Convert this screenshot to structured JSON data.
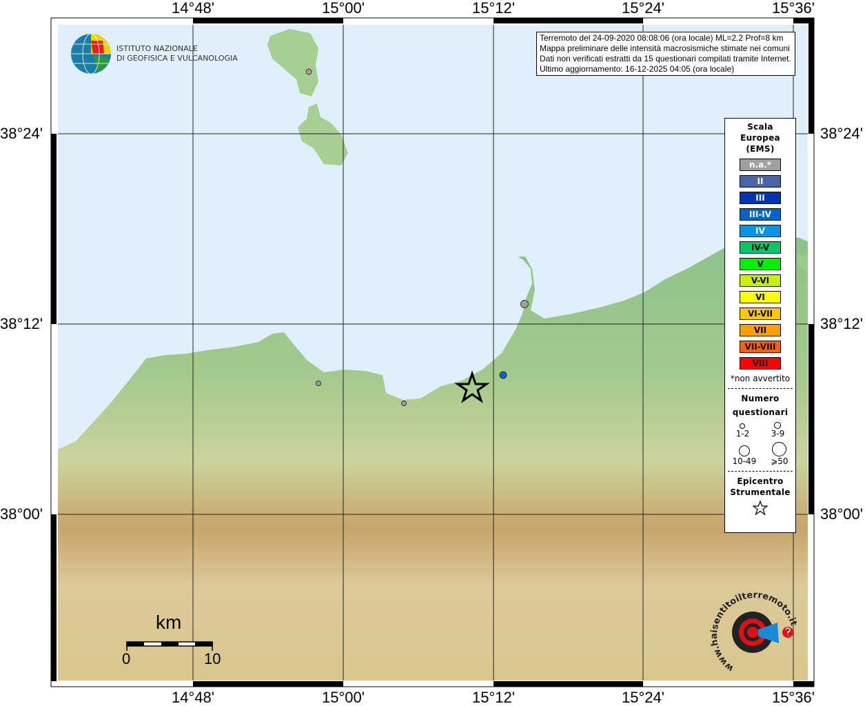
{
  "map": {
    "lon_labels": [
      "14°48'",
      "15°00'",
      "15°12'",
      "15°24'",
      "15°36'"
    ],
    "lat_labels": [
      "38°24'",
      "38°12'",
      "38°00'"
    ]
  },
  "logo": {
    "line1": "ISTITUTO NAZIONALE",
    "line2": "DI GEOFISICA E VULCANOLOGIA"
  },
  "info": {
    "line1": "Terremoto del 24-09-2020 08:08:06 (ora locale) ML=2.2 Prof=8 km",
    "line2": "Mappa preliminare delle intensità macrosismiche stimate nei comuni",
    "line3": "Dati non verificati estratti da 15 questionari compilati tramite Internet.",
    "line4": "Ultimo aggiornamento: 16-12-2025 04:05 (ora locale)"
  },
  "legend": {
    "title1": "Scala",
    "title2": "Europea",
    "title3": "(EMS)",
    "scale": [
      {
        "label": "n.a.*",
        "color": "#a0a0a0",
        "text": "#ffffff"
      },
      {
        "label": "II",
        "color": "#4a64aa",
        "text": "#ffffff"
      },
      {
        "label": "III",
        "color": "#0032b4",
        "text": "#ffffff"
      },
      {
        "label": "III-IV",
        "color": "#0064c8",
        "text": "#ffffff"
      },
      {
        "label": "IV",
        "color": "#0096e6",
        "text": "#ffffff"
      },
      {
        "label": "IV-V",
        "color": "#00c864",
        "text": "#000000"
      },
      {
        "label": "V",
        "color": "#00f000",
        "text": "#000000"
      },
      {
        "label": "V-VI",
        "color": "#c8f000",
        "text": "#000000"
      },
      {
        "label": "VI",
        "color": "#ffff00",
        "text": "#000000"
      },
      {
        "label": "VI-VII",
        "color": "#ffc800",
        "text": "#000000"
      },
      {
        "label": "VII",
        "color": "#ffa000",
        "text": "#000000"
      },
      {
        "label": "VII-VIII",
        "color": "#ff6400",
        "text": "#000000"
      },
      {
        "label": "VIII",
        "color": "#ff0000",
        "text": "#000000"
      }
    ],
    "note": "*non avvertito",
    "count_title1": "Numero",
    "count_title2": "questionari",
    "counts": [
      "1-2",
      "3-9",
      "10-49",
      "⩾50"
    ],
    "epi_title1": "Epicentro",
    "epi_title2": "Strumentale"
  },
  "scalebar": {
    "unit": "km",
    "min": "0",
    "max": "10"
  },
  "points": [
    {
      "intensity": "n.a.*",
      "color": "#a0a0a0"
    },
    {
      "intensity": "n.a.*",
      "color": "#a0a0a0"
    },
    {
      "intensity": "n.a.*",
      "color": "#a0a0a0"
    },
    {
      "intensity": "n.a.*",
      "color": "#a0a0a0"
    },
    {
      "intensity": "IV",
      "color": "#0a64c8"
    }
  ],
  "brand": {
    "text": "www.haisentitoilterremoto.it"
  }
}
